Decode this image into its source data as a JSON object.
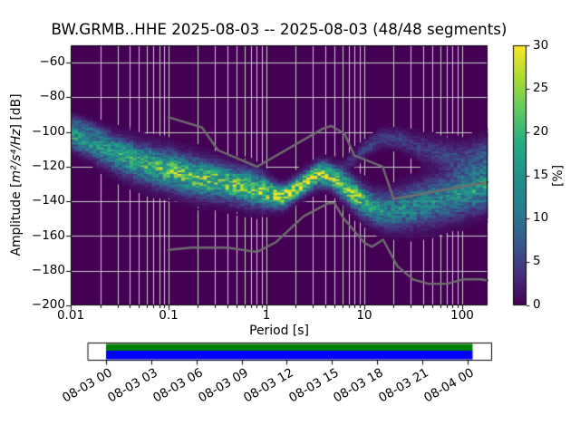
{
  "chart_data": {
    "type": "heatmap",
    "title": "BW.GRMB..HHE   2025-08-03 -- 2025-08-03  (48/48 segments)",
    "station": "BW.GRMB..HHE",
    "date_range": "2025-08-03 -- 2025-08-03",
    "segments": "48/48 segments",
    "xlabel": "Period [s]",
    "ylabel_prefix": "Amplitude [",
    "ylabel_math": "m²/s⁴/Hz",
    "ylabel_suffix": "] [dB]",
    "x_scale": "log",
    "xlim": [
      0.01,
      182
    ],
    "ylim": [
      -200,
      -50
    ],
    "x_tick_values": [
      0.01,
      0.1,
      1,
      10,
      100
    ],
    "x_tick_labels": [
      "0.01",
      "0.1",
      "1",
      "10",
      "100"
    ],
    "y_tick_values": [
      -60,
      -80,
      -100,
      -120,
      -140,
      -160,
      -180,
      -200
    ],
    "y_tick_labels": [
      "−60",
      "−80",
      "−100",
      "−120",
      "−140",
      "−160",
      "−180",
      "−200"
    ],
    "grid": true,
    "colors": {
      "background": "#440154",
      "grid": "#cdcdcd",
      "noise_models": "#6e6e6e",
      "spine": "#000000"
    },
    "colorbar": {
      "label": "[%]",
      "min": 0,
      "max": 30,
      "tick_values": [
        0,
        5,
        10,
        15,
        20,
        25,
        30
      ],
      "tick_labels": [
        "0",
        "5",
        "10",
        "15",
        "20",
        "25",
        "30"
      ],
      "colormap": "viridis"
    },
    "psd_ridge_format": [
      "period_s",
      "center_db",
      "peak_probability_pct",
      "spread_db"
    ],
    "psd_ridge": [
      [
        0.01,
        -101.5,
        16,
        4.5
      ],
      [
        0.014,
        -104.5,
        15,
        5.0
      ],
      [
        0.02,
        -108.5,
        15,
        5.5
      ],
      [
        0.03,
        -113.0,
        16,
        6.0
      ],
      [
        0.045,
        -116.5,
        17,
        6.5
      ],
      [
        0.07,
        -119.5,
        19,
        6.5
      ],
      [
        0.1,
        -121.5,
        21,
        6.5
      ],
      [
        0.15,
        -124.5,
        21,
        6.5
      ],
      [
        0.22,
        -126.5,
        22,
        6.5
      ],
      [
        0.32,
        -128.0,
        22,
        6.0
      ],
      [
        0.5,
        -130.5,
        21,
        6.0
      ],
      [
        0.7,
        -132.0,
        21,
        6.0
      ],
      [
        0.9,
        -133.5,
        23,
        5.5
      ],
      [
        1.2,
        -136.3,
        26,
        4.2
      ],
      [
        1.45,
        -137.3,
        27,
        3.8
      ],
      [
        1.8,
        -134.5,
        28,
        3.6
      ],
      [
        2.4,
        -129.5,
        28,
        3.6
      ],
      [
        3.0,
        -126.0,
        28,
        3.8
      ],
      [
        3.6,
        -123.8,
        28,
        4.0
      ],
      [
        4.5,
        -125.0,
        28,
        4.0
      ],
      [
        5.5,
        -128.5,
        27,
        4.4
      ],
      [
        7.0,
        -133.5,
        26,
        4.8
      ],
      [
        8.5,
        -137.3,
        24,
        5.0
      ],
      [
        10.0,
        -140.5,
        19,
        5.4
      ],
      [
        12.0,
        -143.0,
        16,
        5.6
      ],
      [
        15.0,
        -144.8,
        14,
        6.0
      ],
      [
        19.0,
        -145.3,
        13,
        6.5
      ],
      [
        25.0,
        -144.0,
        13,
        7.0
      ],
      [
        35.0,
        -142.0,
        13,
        7.5
      ],
      [
        50.0,
        -140.0,
        13,
        8.0
      ],
      [
        70.0,
        -137.5,
        13,
        8.0
      ],
      [
        100.0,
        -135.0,
        14,
        8.0
      ],
      [
        140.0,
        -132.5,
        15,
        8.0
      ],
      [
        182.0,
        -130.5,
        15,
        8.0
      ]
    ],
    "psd_wisps": [
      [
        [
          0.01,
          -92.5,
          5.0,
          2.2
        ],
        [
          0.016,
          -96.5,
          4.0,
          2.2
        ],
        [
          0.024,
          -102.0,
          3.0,
          2.2
        ],
        [
          0.034,
          -108.0,
          2.0,
          2.2
        ],
        [
          0.05,
          -113.0,
          0.0,
          2.2
        ]
      ],
      [
        [
          4.5,
          -124.0,
          0.0,
          2.5
        ],
        [
          6.0,
          -120.0,
          2.5,
          2.5
        ],
        [
          8.0,
          -115.0,
          4.0,
          2.8
        ],
        [
          11.0,
          -108.0,
          5.0,
          3.0
        ],
        [
          15.0,
          -103.5,
          5.5,
          3.2
        ],
        [
          22.0,
          -103.5,
          5.0,
          3.6
        ],
        [
          30.0,
          -106.5,
          4.5,
          4.0
        ],
        [
          45.0,
          -110.5,
          4.5,
          5.0
        ],
        [
          70.0,
          -114.0,
          5.0,
          5.5
        ],
        [
          100.0,
          -116.0,
          5.5,
          6.0
        ],
        [
          140.0,
          -114.5,
          6.0,
          6.5
        ],
        [
          182.0,
          -113.5,
          6.0,
          6.5
        ]
      ]
    ],
    "noise_models": {
      "nhnm": [
        [
          0.1,
          -91.5
        ],
        [
          0.22,
          -97.4
        ],
        [
          0.32,
          -110.5
        ],
        [
          0.8,
          -120.0
        ],
        [
          3.8,
          -98.0
        ],
        [
          4.6,
          -96.5
        ],
        [
          6.3,
          -101.0
        ],
        [
          7.9,
          -113.5
        ],
        [
          15.4,
          -120.0
        ],
        [
          20.0,
          -138.6
        ],
        [
          182.0,
          -128.9
        ]
      ],
      "nlnm": [
        [
          0.1,
          -168.0
        ],
        [
          0.17,
          -166.7
        ],
        [
          0.4,
          -166.7
        ],
        [
          0.8,
          -169.2
        ],
        [
          1.24,
          -163.7
        ],
        [
          2.4,
          -148.6
        ],
        [
          4.3,
          -141.1
        ],
        [
          5.0,
          -141.1
        ],
        [
          6.0,
          -149.0
        ],
        [
          10.0,
          -163.8
        ],
        [
          12.0,
          -166.2
        ],
        [
          15.6,
          -162.1
        ],
        [
          21.9,
          -177.5
        ],
        [
          31.6,
          -185.0
        ],
        [
          45.0,
          -187.5
        ],
        [
          70.0,
          -187.5
        ],
        [
          101.0,
          -185.0
        ],
        [
          154.0,
          -185.0
        ],
        [
          182.0,
          -185.6
        ]
      ]
    }
  },
  "timeline": {
    "tick_labels": [
      "08-03 00",
      "08-03 03",
      "08-03 06",
      "08-03 09",
      "08-03 12",
      "08-03 15",
      "08-03 18",
      "08-03 21",
      "08-04 00"
    ],
    "bar_fill_top_color": "#008000",
    "bar_fill_bottom_color": "#0000ff",
    "bar_border_color": "#000000"
  }
}
